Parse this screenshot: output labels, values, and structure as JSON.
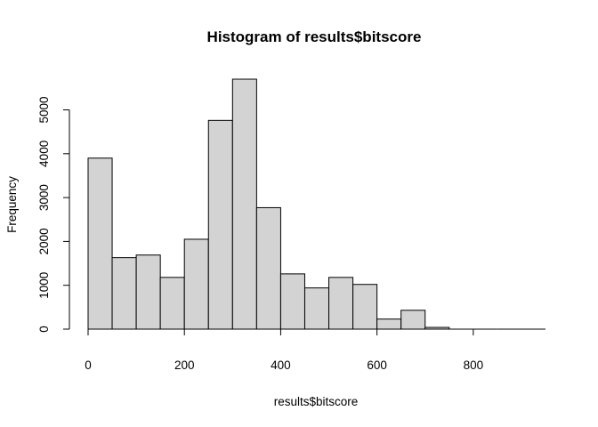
{
  "chart_data": {
    "type": "bar",
    "title": "Histogram of results$bitscore",
    "xlabel": "results$bitscore",
    "ylabel": "Frequency",
    "bin_edges": [
      0,
      50,
      100,
      150,
      200,
      250,
      300,
      350,
      400,
      450,
      500,
      550,
      600,
      650,
      700,
      750,
      800,
      850,
      900,
      950
    ],
    "values": [
      3900,
      1630,
      1690,
      1180,
      2050,
      4760,
      5700,
      2770,
      1260,
      940,
      1180,
      1020,
      230,
      430,
      40,
      0,
      0,
      0,
      0
    ],
    "xlim": [
      0,
      950
    ],
    "ylim": [
      0,
      5700
    ],
    "x_ticks": [
      0,
      200,
      400,
      600,
      800
    ],
    "x_tick_labels": [
      "0",
      "200",
      "400",
      "600",
      "800"
    ],
    "y_ticks": [
      0,
      1000,
      2000,
      3000,
      4000,
      5000
    ],
    "y_tick_labels": [
      "0",
      "1000",
      "2000",
      "3000",
      "4000",
      "5000"
    ],
    "bar_color": "#d3d3d3",
    "grid": false,
    "legend": "none"
  }
}
